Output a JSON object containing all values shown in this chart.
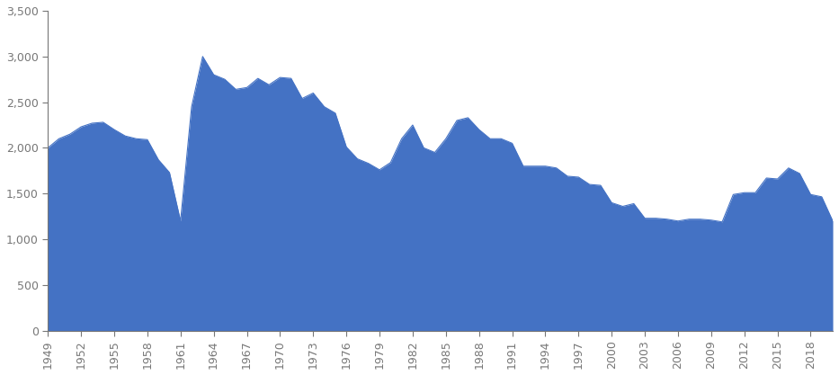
{
  "years": [
    1949,
    1950,
    1951,
    1952,
    1953,
    1954,
    1955,
    1956,
    1957,
    1958,
    1959,
    1960,
    1961,
    1962,
    1963,
    1964,
    1965,
    1966,
    1967,
    1968,
    1969,
    1970,
    1971,
    1972,
    1973,
    1974,
    1975,
    1976,
    1977,
    1978,
    1979,
    1980,
    1981,
    1982,
    1983,
    1984,
    1985,
    1986,
    1987,
    1988,
    1989,
    1990,
    1991,
    1992,
    1993,
    1994,
    1995,
    1996,
    1997,
    1998,
    1999,
    2000,
    2001,
    2002,
    2003,
    2004,
    2005,
    2006,
    2007,
    2008,
    2009,
    2010,
    2011,
    2012,
    2013,
    2014,
    2015,
    2016,
    2017,
    2018,
    2019,
    2020
  ],
  "values": [
    2000,
    2100,
    2150,
    2230,
    2270,
    2280,
    2200,
    2130,
    2100,
    2090,
    1870,
    1730,
    1200,
    2450,
    3000,
    2800,
    2750,
    2640,
    2660,
    2760,
    2690,
    2770,
    2760,
    2540,
    2600,
    2450,
    2380,
    2010,
    1880,
    1830,
    1760,
    1840,
    2100,
    2250,
    2000,
    1950,
    2100,
    2300,
    2330,
    2200,
    2100,
    2100,
    2050,
    1800,
    1800,
    1800,
    1780,
    1690,
    1680,
    1600,
    1590,
    1400,
    1360,
    1390,
    1230,
    1230,
    1220,
    1200,
    1220,
    1220,
    1210,
    1190,
    1490,
    1510,
    1510,
    1670,
    1660,
    1780,
    1720,
    1490,
    1465,
    1200
  ],
  "fill_color": "#4472C4",
  "line_color": "#4472C4",
  "background_color": "#ffffff",
  "ylim": [
    0,
    3500
  ],
  "yticks": [
    0,
    500,
    1000,
    1500,
    2000,
    2500,
    3000,
    3500
  ],
  "xtick_years": [
    1949,
    1952,
    1955,
    1958,
    1961,
    1964,
    1967,
    1970,
    1973,
    1976,
    1979,
    1982,
    1985,
    1988,
    1991,
    1994,
    1997,
    2000,
    2003,
    2006,
    2009,
    2012,
    2015,
    2018
  ],
  "spine_color": "#777777",
  "tick_color": "#777777"
}
